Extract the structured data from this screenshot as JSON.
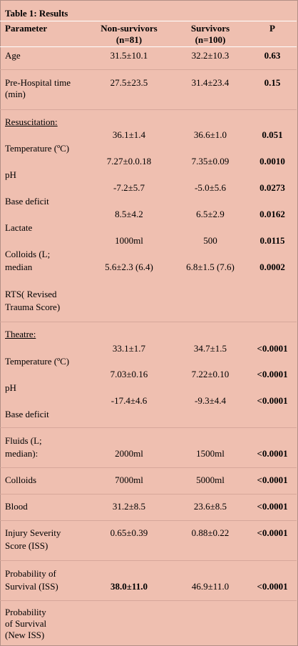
{
  "table": {
    "title": "Table 1: Results",
    "headers": {
      "parameter": "Parameter",
      "non_survivors_line1": "Non-survivors",
      "non_survivors_line2": "(n=81)",
      "survivors_line1": "Survivors",
      "survivors_line2": "(n=100)",
      "p": "P"
    },
    "rows": {
      "age": {
        "label": "Age",
        "non": "31.5±10.1",
        "surv": "32.2±10.3",
        "p": "0.63"
      },
      "prehosp": {
        "label1": "Pre-Hospital time",
        "label2": "(min)",
        "non": "27.5±23.5",
        "surv": "31.4±23.4",
        "p": "0.15"
      },
      "resuscitation": {
        "label": "Resuscitation:"
      },
      "res_temp": {
        "label": "Temperature (ºC)",
        "non": "36.1±1.4",
        "surv": "36.6±1.0",
        "p": "0.051"
      },
      "res_ph": {
        "label": "pH",
        "non": "7.27±0.0.18",
        "surv": "7.35±0.09",
        "p": "0.0010"
      },
      "res_base": {
        "label": "Base deficit",
        "non": "-7.2±5.7",
        "surv": "-5.0±5.6",
        "p": "0.0273"
      },
      "res_lactate": {
        "label": "Lactate",
        "non": "8.5±4.2",
        "surv": "6.5±2.9",
        "p": "0.0162"
      },
      "res_colloids": {
        "label1": "Colloids (L;",
        "label2": "median",
        "non": "1000ml",
        "surv": "500",
        "p": "0.0115"
      },
      "rts": {
        "label1": "RTS( Revised",
        "label2": "Trauma Score)",
        "non": "5.6±2.3 (6.4)",
        "surv": "6.8±1.5 (7.6)",
        "p": "0.0002"
      },
      "theatre": {
        "label": "Theatre:"
      },
      "th_temp": {
        "label": "Temperature (ºC)",
        "non": "33.1±1.7",
        "surv": "34.7±1.5",
        "p": "<0.0001"
      },
      "th_ph": {
        "label": "pH",
        "non": "7.03±0.16",
        "surv": "7.22±0.10",
        "p": "<0.0001"
      },
      "th_base": {
        "label": "Base deficit",
        "non": "-17.4±4.6",
        "surv": "-9.3±4.4",
        "p": "<0.0001"
      },
      "fluids": {
        "label1": "Fluids (L;",
        "label2": "median):",
        "non": "2000ml",
        "surv": "1500ml",
        "p": "<0.0001"
      },
      "colloids": {
        "label": "Colloids",
        "non": "7000ml",
        "surv": "5000ml",
        "p": "<0.0001"
      },
      "blood": {
        "label": "Blood",
        "non": "31.2±8.5",
        "surv": "23.6±8.5",
        "p": "<0.0001"
      },
      "iss": {
        "label1": "Injury Severity",
        "label2": "Score (ISS)",
        "non": "0.65±0.39",
        "surv": "0.88±0.22",
        "p": "<0.0001"
      },
      "prob_iss": {
        "label1": "Probability of",
        "label2": "Survival  (ISS)",
        "non": "38.0±11.0",
        "surv": "46.9±11.0",
        "p": "<0.0001"
      },
      "prob_new": {
        "label1": "Probability",
        "label2": "of Survival",
        "label3": "(New ISS)"
      }
    }
  }
}
